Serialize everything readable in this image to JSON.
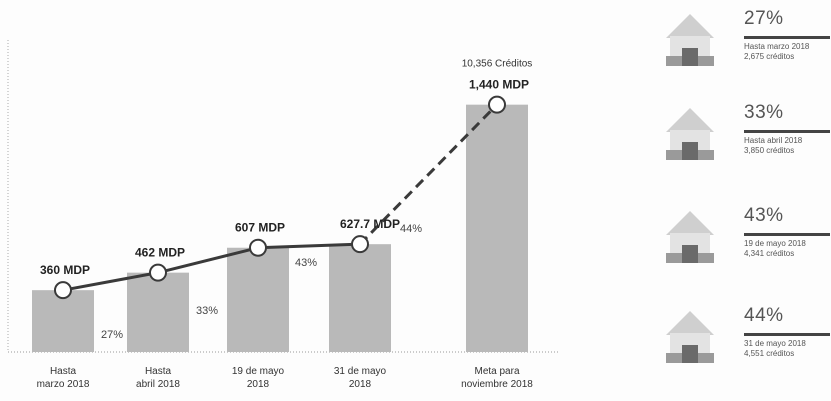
{
  "chart_data": {
    "type": "bar",
    "categories": [
      "Hasta\nmarzo 2018",
      "Hasta\nabril 2018",
      "19 de mayo\n2018",
      "31 de mayo\n2018",
      "Meta para\nnoviembre 2018"
    ],
    "values": [
      360,
      462,
      607,
      627.7,
      1440
    ],
    "value_labels": [
      "360 MDP",
      "462 MDP",
      "607 MDP",
      "627.7  MDP",
      "1,440  MDP"
    ],
    "percent_labels": [
      "27%",
      "33%",
      "43%",
      "44%",
      ""
    ],
    "top_annotation": "10,356  Créditos",
    "ylim": [
      0,
      1700
    ],
    "grid": false,
    "colors": {
      "bar": "#b9b9b9",
      "line": "#3a3a3a",
      "marker_fill": "#ffffff"
    }
  },
  "side_panel": [
    {
      "percent": "27%",
      "line1": "Hasta marzo 2018",
      "line2": "2,675 créditos",
      "icon": "house-icon"
    },
    {
      "percent": "33%",
      "line1": "Hasta abril 2018",
      "line2": "3,850 créditos",
      "icon": "house-icon"
    },
    {
      "percent": "43%",
      "line1": "19 de mayo 2018",
      "line2": "4,341 créditos",
      "icon": "house-icon"
    },
    {
      "percent": "44%",
      "line1": "31 de mayo 2018",
      "line2": "4,551 créditos",
      "icon": "house-icon"
    }
  ]
}
